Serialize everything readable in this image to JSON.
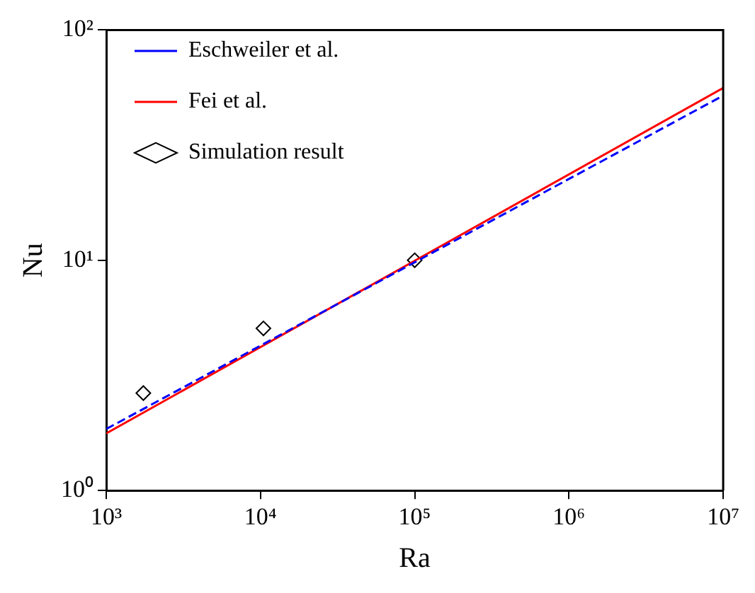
{
  "chart_data": {
    "type": "line",
    "xlabel": "Ra",
    "ylabel": "Nu",
    "log": "xy",
    "grid": false,
    "legend": "top left",
    "xlim": [
      1000,
      10000000
    ],
    "ylim": [
      1,
      100
    ],
    "xticks": [
      {
        "value": 1000,
        "label": "10³"
      },
      {
        "value": 10000,
        "label": "10⁴"
      },
      {
        "value": 100000,
        "label": "10⁵"
      },
      {
        "value": 1000000,
        "label": "10⁶"
      },
      {
        "value": 10000000,
        "label": "10⁷"
      }
    ],
    "yticks": [
      {
        "value": 1,
        "label": "10⁰"
      },
      {
        "value": 10,
        "label": "10¹"
      },
      {
        "value": 100,
        "label": "10²"
      }
    ],
    "series": [
      {
        "name": "Eschweiler et al.",
        "line_style": "dashed",
        "marker": "none",
        "color": "#0000ff",
        "x": [
          1000,
          100000,
          10000000
        ],
        "values": [
          1.85,
          9.8,
          51.9
        ]
      },
      {
        "name": "Fei et al.",
        "line_style": "solid",
        "marker": "none",
        "color": "#ff0000",
        "x": [
          1000,
          100000,
          10000000
        ],
        "values": [
          1.77,
          9.95,
          56
        ]
      },
      {
        "name": "Simulation result",
        "type": "scatter",
        "marker": "diamond",
        "color": "#000000",
        "x": [
          1740,
          10450,
          100000
        ],
        "values": [
          2.65,
          5.06,
          10.0
        ]
      }
    ]
  }
}
